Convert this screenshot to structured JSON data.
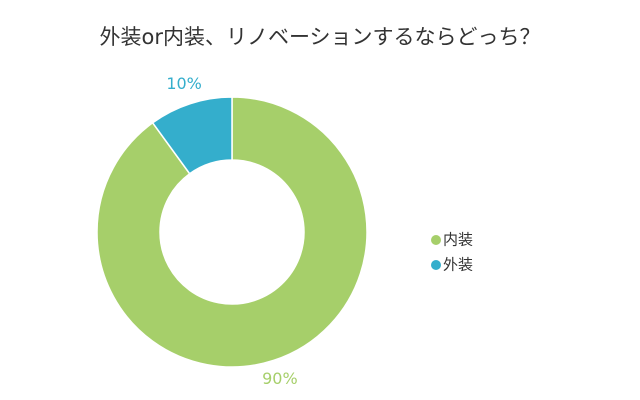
{
  "chart_data": {
    "type": "pie",
    "title": "外装or内装、リノベーションするならどっち？",
    "categories": [
      "内装",
      "外装"
    ],
    "values": [
      90,
      10
    ],
    "value_labels": [
      "90%",
      "10%"
    ],
    "colors": [
      "#a6cf6a",
      "#34aecc"
    ],
    "donut": true,
    "legend": "right"
  }
}
